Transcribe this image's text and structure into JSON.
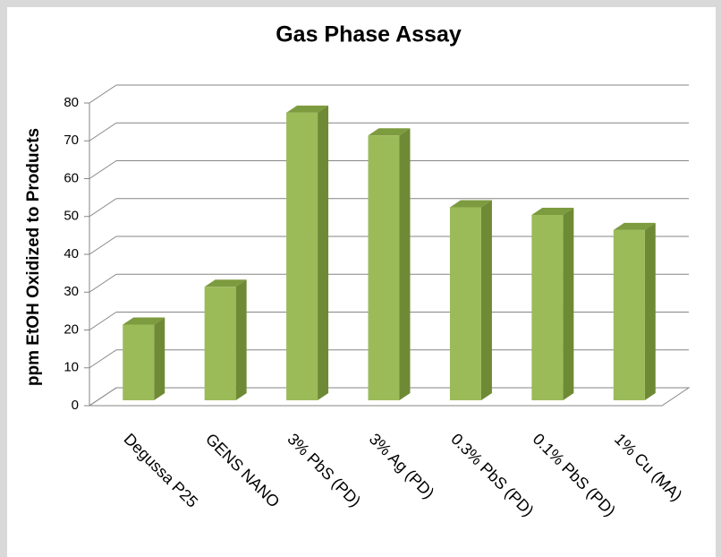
{
  "chart_data": {
    "type": "bar3d",
    "title": "Gas Phase Assay",
    "y_label": "ppm EtOH Oxidized to Products",
    "categories": [
      "Degussa P25",
      "GENS NANO",
      "3% PbS (PD)",
      "3% Ag (PD)",
      "0.3% PbS (PD)",
      "0.1% PbS (PD)",
      "1% Cu (MA)"
    ],
    "values": [
      20,
      30,
      76,
      70,
      51,
      49,
      45
    ],
    "color": "#9bbb59",
    "ylim": [
      0,
      80
    ],
    "yticks": [
      0,
      10,
      20,
      30,
      40,
      50,
      60,
      70,
      80
    ],
    "grid": true
  }
}
